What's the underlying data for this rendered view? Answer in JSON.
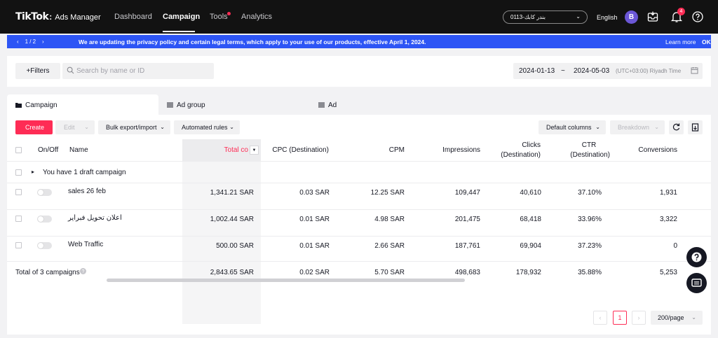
{
  "brand": {
    "main": "TikTok",
    "sub": "Ads Manager"
  },
  "nav": {
    "items": [
      "Dashboard",
      "Campaign",
      "Tools",
      "Analytics"
    ]
  },
  "account": {
    "name": "0113-بندر كابك"
  },
  "header": {
    "language": "English",
    "avatar_initial": "B",
    "notification_count": "4"
  },
  "banner": {
    "pager": "1 / 2",
    "message": "We are updating the privacy policy and certain legal terms, which apply to your use of our products, effective April 1, 2024.",
    "learn_more": "Learn more",
    "ok": "OK"
  },
  "filters": {
    "filters_label": "+Filters",
    "search_placeholder": "Search by name or ID",
    "date_start": "2024-01-13",
    "date_sep": "~",
    "date_end": "2024-05-03",
    "timezone": "(UTC+03:00) Riyadh Time"
  },
  "tabs": [
    "Campaign",
    "Ad group",
    "Ad"
  ],
  "toolbar": {
    "create": "Create",
    "edit": "Edit",
    "bulk": "Bulk export/import",
    "automated": "Automated rules",
    "default_columns": "Default columns",
    "breakdown": "Breakdown"
  },
  "table": {
    "columns": {
      "onoff": "On/Off",
      "name": "Name",
      "total_cost": "Total co",
      "cpc": "CPC (Destination)",
      "cpm": "CPM",
      "impressions": "Impressions",
      "clicks_1": "Clicks",
      "clicks_2": "(Destination)",
      "ctr_1": "CTR",
      "ctr_2": "(Destination)",
      "conversions": "Conversions"
    },
    "draft_row": "You have 1 draft campaign",
    "rows": [
      {
        "name": "sales 26 feb",
        "total_cost": "1,341.21 SAR",
        "cpc": "0.03 SAR",
        "cpm": "12.25 SAR",
        "impressions": "109,447",
        "clicks": "40,610",
        "ctr": "37.10%",
        "conversions": "1,931"
      },
      {
        "name": "اعلان تحويل فبراير",
        "total_cost": "1,002.44 SAR",
        "cpc": "0.01 SAR",
        "cpm": "4.98 SAR",
        "impressions": "201,475",
        "clicks": "68,418",
        "ctr": "33.96%",
        "conversions": "3,322"
      },
      {
        "name": "Web Traffic",
        "total_cost": "500.00 SAR",
        "cpc": "0.01 SAR",
        "cpm": "2.66 SAR",
        "impressions": "187,761",
        "clicks": "69,904",
        "ctr": "37.23%",
        "conversions": "0"
      }
    ],
    "total": {
      "label": "Total of 3 campaigns",
      "total_cost": "2,843.65 SAR",
      "cpc": "0.02 SAR",
      "cpm": "5.70 SAR",
      "impressions": "498,683",
      "clicks": "178,932",
      "ctr": "35.88%",
      "conversions": "5,253"
    }
  },
  "pagination": {
    "current_page": "1",
    "page_size": "200/page"
  },
  "colors": {
    "accent": "#fe2c55",
    "banner": "#2d55f5",
    "nav_bg": "#121212"
  }
}
